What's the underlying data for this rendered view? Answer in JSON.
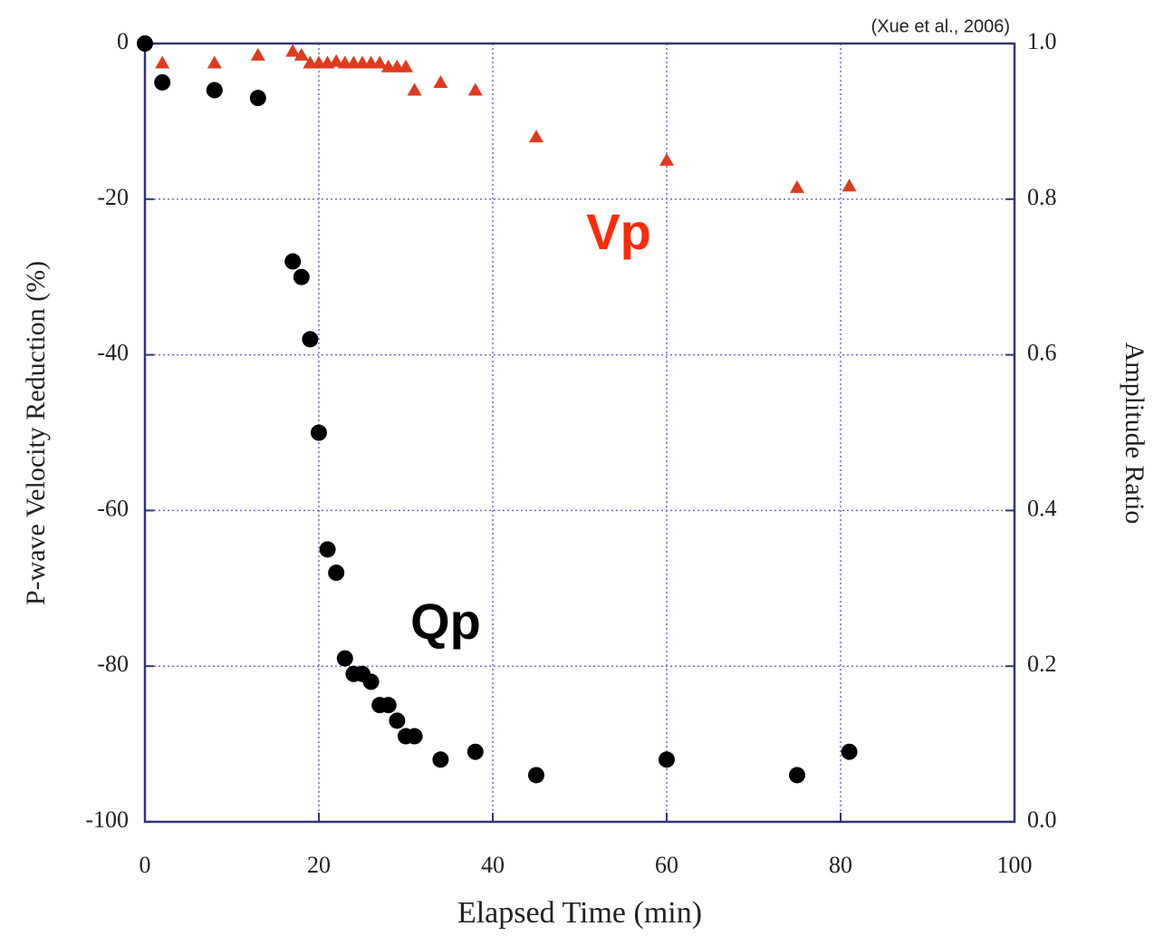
{
  "chart_data": {
    "type": "scatter",
    "source": "(Xue et al., 2006)",
    "x_label": "Elapsed Time (min)",
    "y_label": "P-wave Velocity Reduction (%)",
    "y2_label": "Amplitude Ratio",
    "xlim": [
      0,
      100
    ],
    "xticks": [
      0,
      20,
      40,
      60,
      80,
      100
    ],
    "ylim": [
      -100,
      0
    ],
    "yticks": [
      -100,
      -80,
      -60,
      -40,
      -20,
      0
    ],
    "y2lim": [
      0,
      1
    ],
    "y2ticks": [
      {
        "value": 0,
        "label": "0.0"
      },
      {
        "value": 0.2,
        "label": "0.2"
      },
      {
        "value": 0.4,
        "label": "0.4"
      },
      {
        "value": 0.6,
        "label": "0.6"
      },
      {
        "value": 0.8,
        "label": "0.8"
      },
      {
        "value": 1,
        "label": "1.0"
      }
    ],
    "grid": true,
    "series": [
      {
        "name": "Vp",
        "color": "#e03a1e",
        "marker": "triangle",
        "x": [
          2,
          8,
          13,
          17,
          18,
          19,
          20,
          21,
          22,
          23,
          24,
          25,
          26,
          27,
          28,
          29,
          30,
          31,
          34,
          38,
          45,
          60,
          75,
          81
        ],
        "values": [
          -2.5,
          -2.5,
          -1.5,
          -1,
          -1.5,
          -2.5,
          -2.5,
          -2.5,
          -2.3,
          -2.5,
          -2.5,
          -2.5,
          -2.5,
          -2.5,
          -3,
          -3,
          -3,
          -6,
          -5,
          -6,
          -12,
          -15,
          -18.5,
          -18.3
        ]
      },
      {
        "name": "Qp",
        "color": "#000000",
        "marker": "circle",
        "axis": "y2",
        "x": [
          0,
          2,
          8,
          13,
          17,
          18,
          19,
          20,
          21,
          22,
          23,
          24,
          25,
          26,
          27,
          28,
          29,
          30,
          31,
          34,
          38,
          45,
          60,
          75,
          81
        ],
        "values": [
          1.0,
          0.95,
          0.94,
          0.93,
          0.72,
          0.7,
          0.62,
          0.5,
          0.35,
          0.32,
          0.21,
          0.19,
          0.19,
          0.18,
          0.15,
          0.15,
          0.13,
          0.11,
          0.11,
          0.08,
          0.09,
          0.06,
          0.08,
          0.06,
          0.09
        ]
      }
    ]
  }
}
